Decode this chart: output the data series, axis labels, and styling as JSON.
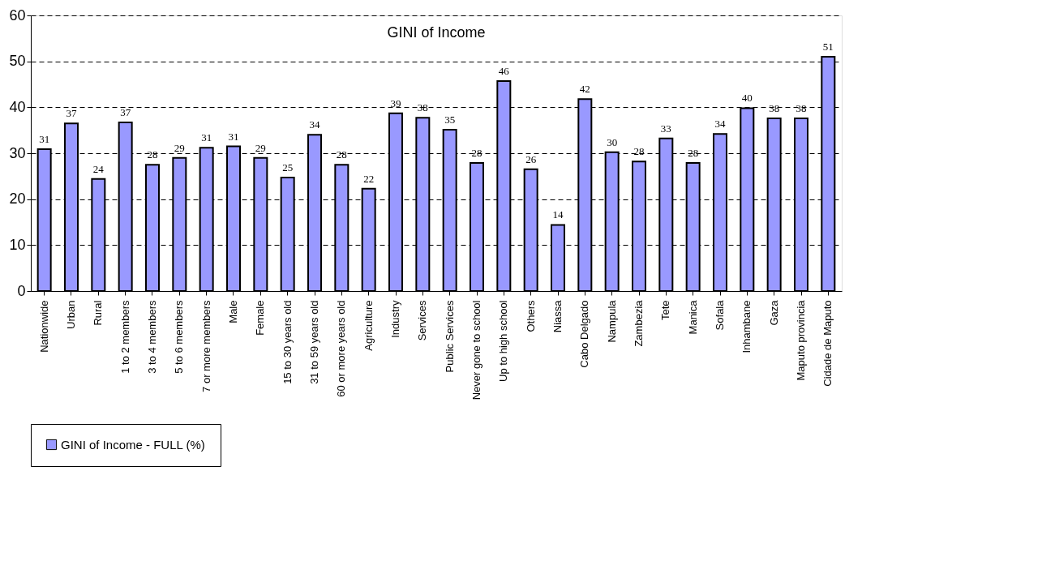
{
  "chart_data": {
    "type": "bar",
    "title": "GINI of Income",
    "categories": [
      "Nationwide",
      "Urban",
      "Rural",
      "1 to 2 members",
      "3 to 4 members",
      "5 to 6 members",
      "7 or more members",
      "Male",
      "Female",
      "15 to 30 years old",
      "31 to 59 years old",
      "60 or more years old",
      "Agriculture",
      "Industry",
      "Services",
      "Public Services",
      "Never gone to school",
      "Up to high school",
      "Others",
      "Niassa",
      "Cabo Delgado",
      "Nampula",
      "Zambezia",
      "Tete",
      "Manica",
      "Sofala",
      "Inhambane",
      "Gaza",
      "Maputo provincia",
      "Cidade de Maputo"
    ],
    "series": [
      {
        "name": "GINI of Income - FULL (%)",
        "color": "#9999ff",
        "values": [
          30.9,
          36.5,
          24.4,
          36.7,
          27.5,
          29.0,
          31.2,
          31.5,
          29.0,
          24.7,
          34.0,
          27.5,
          22.3,
          38.7,
          37.7,
          35.1,
          27.9,
          45.7,
          26.5,
          14.4,
          41.8,
          30.2,
          28.2,
          33.2,
          27.9,
          34.2,
          39.8,
          37.6,
          37.6,
          51.0
        ],
        "value_labels": [
          "31",
          "37",
          "24",
          "37",
          "28",
          "29",
          "31",
          "31",
          "29",
          "25",
          "34",
          "28",
          "22",
          "39",
          "38",
          "35",
          "28",
          "46",
          "26",
          "14",
          "42",
          "30",
          "28",
          "33",
          "28",
          "34",
          "40",
          "38",
          "38",
          "51"
        ]
      }
    ],
    "ylim": [
      0,
      60
    ],
    "yticks": [
      0,
      10,
      20,
      30,
      40,
      50,
      60
    ],
    "grid": "y",
    "legend": "bottom"
  }
}
